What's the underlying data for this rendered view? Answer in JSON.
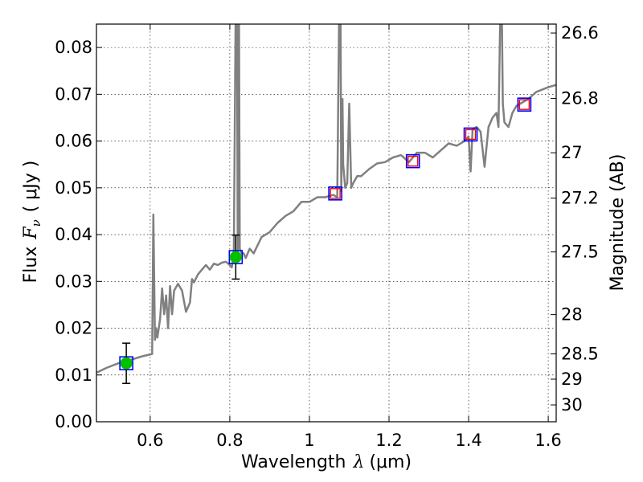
{
  "chart_data": {
    "type": "line",
    "xlabel": "Wavelength",
    "xlabel_symbol": "λ",
    "xlabel_unit": "(μm)",
    "ylabel": "Flux",
    "ylabel_symbol": "F",
    "ylabel_sub": "ν",
    "ylabel_unit": "( μJy )",
    "y2label": "Magnitude (AB)",
    "xlim": [
      0.465,
      1.62
    ],
    "ylim": [
      0.0,
      0.085
    ],
    "grid": true,
    "x_ticks": [
      {
        "value": 0.6,
        "label": "0.6"
      },
      {
        "value": 0.8,
        "label": "0.8"
      },
      {
        "value": 1.0,
        "label": "1"
      },
      {
        "value": 1.2,
        "label": "1.2"
      },
      {
        "value": 1.4,
        "label": "1.4"
      },
      {
        "value": 1.6,
        "label": "1.6"
      }
    ],
    "y_ticks": [
      {
        "value": 0.0,
        "label": "0.00"
      },
      {
        "value": 0.01,
        "label": "0.01"
      },
      {
        "value": 0.02,
        "label": "0.02"
      },
      {
        "value": 0.03,
        "label": "0.03"
      },
      {
        "value": 0.04,
        "label": "0.04"
      },
      {
        "value": 0.05,
        "label": "0.05"
      },
      {
        "value": 0.06,
        "label": "0.06"
      },
      {
        "value": 0.07,
        "label": "0.07"
      },
      {
        "value": 0.08,
        "label": "0.08"
      }
    ],
    "y2_ticks": [
      {
        "flux": 0.0831,
        "label": "26.6"
      },
      {
        "flux": 0.0691,
        "label": "26.8"
      },
      {
        "flux": 0.0575,
        "label": "27"
      },
      {
        "flux": 0.0478,
        "label": "27.2"
      },
      {
        "flux": 0.0363,
        "label": "27.5"
      },
      {
        "flux": 0.0229,
        "label": "28"
      },
      {
        "flux": 0.0145,
        "label": "28.5"
      },
      {
        "flux": 0.0091,
        "label": "29"
      },
      {
        "flux": 0.0036,
        "label": "30"
      }
    ],
    "series": [
      {
        "kind": "line",
        "color": "#808080",
        "x": [
          0.465,
          0.49,
          0.52,
          0.55,
          0.58,
          0.605,
          0.608,
          0.612,
          0.615,
          0.618,
          0.625,
          0.63,
          0.635,
          0.64,
          0.645,
          0.65,
          0.655,
          0.66,
          0.67,
          0.68,
          0.69,
          0.7,
          0.705,
          0.71,
          0.72,
          0.73,
          0.74,
          0.75,
          0.76,
          0.77,
          0.78,
          0.79,
          0.8,
          0.805,
          0.81,
          0.815,
          0.818,
          0.82,
          0.823,
          0.825,
          0.83,
          0.835,
          0.84,
          0.85,
          0.86,
          0.88,
          0.9,
          0.92,
          0.94,
          0.96,
          0.98,
          1.0,
          1.02,
          1.04,
          1.06,
          1.07,
          1.075,
          1.078,
          1.08,
          1.083,
          1.085,
          1.09,
          1.095,
          1.1,
          1.105,
          1.11,
          1.12,
          1.13,
          1.15,
          1.17,
          1.19,
          1.21,
          1.23,
          1.25,
          1.27,
          1.29,
          1.31,
          1.33,
          1.35,
          1.37,
          1.39,
          1.4,
          1.405,
          1.41,
          1.42,
          1.43,
          1.44,
          1.45,
          1.46,
          1.47,
          1.475,
          1.48,
          1.483,
          1.486,
          1.49,
          1.5,
          1.51,
          1.52,
          1.53,
          1.55,
          1.57,
          1.6,
          1.62
        ],
        "y": [
          0.0105,
          0.0115,
          0.0125,
          0.0132,
          0.014,
          0.0145,
          0.0443,
          0.0175,
          0.02,
          0.018,
          0.022,
          0.0285,
          0.023,
          0.027,
          0.02,
          0.029,
          0.023,
          0.028,
          0.0295,
          0.028,
          0.0235,
          0.0255,
          0.0305,
          0.0298,
          0.0315,
          0.0325,
          0.0335,
          0.0325,
          0.0338,
          0.0335,
          0.034,
          0.0342,
          0.0335,
          0.033,
          0.036,
          0.09,
          0.09,
          0.0355,
          0.09,
          0.037,
          0.036,
          0.036,
          0.035,
          0.037,
          0.036,
          0.0395,
          0.0405,
          0.0425,
          0.044,
          0.045,
          0.047,
          0.047,
          0.048,
          0.048,
          0.0485,
          0.048,
          0.09,
          0.09,
          0.0493,
          0.069,
          0.055,
          0.05,
          0.051,
          0.068,
          0.05,
          0.051,
          0.0525,
          0.0525,
          0.054,
          0.0552,
          0.0555,
          0.0565,
          0.057,
          0.0555,
          0.0575,
          0.0575,
          0.0565,
          0.058,
          0.0595,
          0.059,
          0.06,
          0.061,
          0.0535,
          0.0625,
          0.063,
          0.062,
          0.0545,
          0.063,
          0.065,
          0.066,
          0.063,
          0.09,
          0.09,
          0.068,
          0.064,
          0.063,
          0.066,
          0.0675,
          0.068,
          0.069,
          0.0705,
          0.0715,
          0.072
        ]
      },
      {
        "kind": "marker",
        "marker": "square-open",
        "color": "#0000ff",
        "x": [
          0.54,
          0.815,
          1.065,
          1.26,
          1.405,
          1.54
        ],
        "y": [
          0.0125,
          0.0352,
          0.0488,
          0.0557,
          0.0614,
          0.0678
        ]
      },
      {
        "kind": "marker",
        "marker": "square-open-small",
        "color": "#ff0000",
        "x": [
          1.065,
          1.26,
          1.405,
          1.54
        ],
        "y": [
          0.0488,
          0.0557,
          0.0614,
          0.0678
        ]
      },
      {
        "kind": "marker",
        "marker": "circle",
        "color": "#00c000",
        "x": [
          0.54,
          0.815
        ],
        "y": [
          0.0125,
          0.0352
        ],
        "err_low": [
          0.0082,
          0.0305
        ],
        "err_high": [
          0.0168,
          0.0399
        ]
      }
    ]
  }
}
